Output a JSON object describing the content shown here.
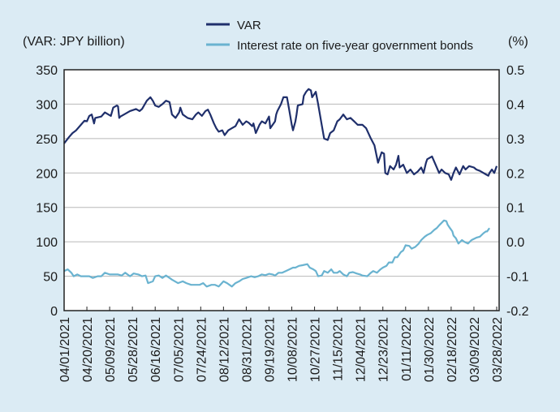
{
  "chart_data": {
    "type": "line",
    "title": "",
    "left_axis_label": "(VAR: JPY billion)",
    "right_axis_label": "(%)",
    "ylim_left": [
      0,
      350
    ],
    "yticks_left": [
      "0",
      "50",
      "100",
      "150",
      "200",
      "250",
      "300",
      "350"
    ],
    "ylim_right": [
      -0.2,
      0.5
    ],
    "yticks_right": [
      "-0.2",
      "-0.1",
      "0.0",
      "0.1",
      "0.2",
      "0.3",
      "0.4",
      "0.5"
    ],
    "x_range_days": [
      0,
      361
    ],
    "x_start_date": "04/01/2021",
    "xticks": [
      "04/01/2021",
      "04/20/2021",
      "05/09/2021",
      "05/28/2021",
      "06/16/2021",
      "07/05/2021",
      "07/24/2021",
      "08/12/2021",
      "08/31/2021",
      "09/19/2021",
      "10/08/2021",
      "10/27/2021",
      "11/15/2021",
      "12/04/2021",
      "12/23/2021",
      "01/11/2022",
      "01/30/2022",
      "02/18/2022",
      "03/09/2022",
      "03/28/2022"
    ],
    "grid": "horizontal",
    "legend_position": "top-center",
    "legend": [
      "VAR",
      "Interest rate on five-year government bonds"
    ],
    "series": [
      {
        "name": "VAR",
        "axis": "left",
        "color": "#1f2f6b",
        "x_days": [
          0,
          4,
          7,
          10,
          14,
          17,
          19,
          21,
          23,
          25,
          26,
          31,
          34,
          37,
          39,
          41,
          44,
          45,
          46,
          47,
          50,
          55,
          60,
          63,
          65,
          69,
          72,
          74,
          76,
          79,
          82,
          85,
          88,
          90,
          93,
          96,
          97,
          99,
          103,
          107,
          110,
          112,
          115,
          118,
          120,
          122,
          125,
          127,
          129,
          132,
          134,
          137,
          140,
          143,
          146,
          149,
          152,
          154,
          157,
          158,
          160,
          163,
          165,
          168,
          171,
          172,
          176,
          177,
          178,
          181,
          183,
          186,
          188,
          190,
          191,
          193,
          194,
          195,
          199,
          200,
          202,
          204,
          206,
          207,
          210,
          212,
          215,
          217,
          220,
          222,
          225,
          228,
          230,
          233,
          236,
          239,
          242,
          245,
          249,
          252,
          256,
          259,
          262,
          265,
          267,
          268,
          270,
          272,
          275,
          277,
          279,
          280,
          283,
          286,
          289,
          292,
          295,
          298,
          300,
          302,
          303,
          307,
          310,
          313,
          315,
          318,
          321,
          323,
          325,
          327,
          330,
          333,
          335,
          338,
          342,
          344,
          347,
          350,
          352,
          354,
          355,
          357,
          359,
          361
        ],
        "values": [
          243,
          252,
          258,
          262,
          270,
          276,
          275,
          283,
          285,
          272,
          280,
          282,
          288,
          285,
          283,
          295,
          298,
          297,
          280,
          282,
          285,
          290,
          293,
          290,
          293,
          305,
          310,
          305,
          298,
          296,
          300,
          305,
          303,
          285,
          280,
          288,
          295,
          285,
          280,
          278,
          285,
          288,
          283,
          290,
          292,
          285,
          272,
          265,
          260,
          262,
          255,
          262,
          265,
          268,
          278,
          270,
          275,
          273,
          268,
          272,
          258,
          270,
          275,
          272,
          282,
          265,
          275,
          285,
          290,
          300,
          310,
          310,
          290,
          270,
          262,
          275,
          285,
          298,
          300,
          312,
          318,
          322,
          320,
          310,
          318,
          300,
          270,
          250,
          248,
          258,
          262,
          275,
          278,
          285,
          278,
          280,
          275,
          270,
          270,
          265,
          250,
          240,
          215,
          230,
          228,
          200,
          198,
          210,
          205,
          212,
          225,
          208,
          212,
          200,
          205,
          198,
          202,
          208,
          200,
          215,
          220,
          224,
          212,
          200,
          205,
          200,
          198,
          190,
          200,
          208,
          198,
          210,
          205,
          210,
          208,
          205,
          203,
          200,
          198,
          196,
          200,
          205,
          200,
          210
        ]
      },
      {
        "name": "Interest rate on five-year government bonds",
        "axis": "right",
        "color": "#6ab3d0",
        "x_days": [
          0,
          3,
          6,
          8,
          11,
          14,
          18,
          21,
          24,
          28,
          31,
          34,
          38,
          41,
          45,
          48,
          51,
          55,
          58,
          62,
          65,
          68,
          70,
          74,
          76,
          79,
          82,
          85,
          88,
          90,
          95,
          99,
          102,
          106,
          109,
          113,
          116,
          119,
          123,
          126,
          129,
          133,
          136,
          140,
          143,
          146,
          149,
          152,
          156,
          159,
          162,
          165,
          168,
          171,
          174,
          176,
          179,
          182,
          185,
          188,
          191,
          193,
          196,
          199,
          203,
          205,
          208,
          210,
          212,
          215,
          217,
          220,
          223,
          225,
          228,
          230,
          233,
          236,
          238,
          241,
          244,
          247,
          249,
          253,
          256,
          258,
          261,
          264,
          266,
          269,
          271,
          274,
          276,
          278,
          281,
          283,
          285,
          288,
          290,
          293,
          296,
          298,
          301,
          303,
          306,
          309,
          311,
          313,
          315,
          317,
          319,
          320,
          322,
          324,
          325,
          327,
          329,
          332,
          334,
          337,
          340,
          344,
          347,
          350,
          352,
          353,
          355
        ],
        "values": [
          -0.085,
          -0.08,
          -0.09,
          -0.1,
          -0.095,
          -0.1,
          -0.1,
          -0.1,
          -0.105,
          -0.1,
          -0.1,
          -0.09,
          -0.095,
          -0.095,
          -0.095,
          -0.098,
          -0.09,
          -0.1,
          -0.092,
          -0.095,
          -0.1,
          -0.098,
          -0.12,
          -0.115,
          -0.1,
          -0.098,
          -0.105,
          -0.098,
          -0.105,
          -0.11,
          -0.12,
          -0.115,
          -0.12,
          -0.125,
          -0.125,
          -0.125,
          -0.12,
          -0.13,
          -0.125,
          -0.125,
          -0.13,
          -0.115,
          -0.12,
          -0.13,
          -0.12,
          -0.115,
          -0.108,
          -0.105,
          -0.1,
          -0.103,
          -0.1,
          -0.095,
          -0.097,
          -0.093,
          -0.095,
          -0.098,
          -0.09,
          -0.09,
          -0.085,
          -0.08,
          -0.075,
          -0.075,
          -0.07,
          -0.068,
          -0.065,
          -0.075,
          -0.08,
          -0.085,
          -0.1,
          -0.098,
          -0.085,
          -0.09,
          -0.08,
          -0.09,
          -0.09,
          -0.085,
          -0.095,
          -0.1,
          -0.09,
          -0.088,
          -0.092,
          -0.095,
          -0.098,
          -0.1,
          -0.09,
          -0.085,
          -0.09,
          -0.08,
          -0.075,
          -0.07,
          -0.06,
          -0.06,
          -0.045,
          -0.045,
          -0.03,
          -0.025,
          -0.01,
          -0.012,
          -0.02,
          -0.015,
          -0.005,
          0.005,
          0.015,
          0.02,
          0.025,
          0.035,
          0.04,
          0.048,
          0.055,
          0.062,
          0.06,
          0.05,
          0.04,
          0.03,
          0.018,
          0.01,
          -0.005,
          0.005,
          0.0,
          -0.005,
          0.005,
          0.012,
          0.015,
          0.025,
          0.03,
          0.03,
          0.04
        ]
      }
    ]
  },
  "legend": {
    "items": [
      {
        "label": "VAR",
        "color": "#1f2f6b"
      },
      {
        "label": "Interest rate on five-year government bonds",
        "color": "#6ab3d0"
      }
    ]
  },
  "colors": {
    "background": "#dbebf4",
    "plot_background": "#ffffff",
    "gridline": "#b8b8b8",
    "axis": "#222222"
  }
}
